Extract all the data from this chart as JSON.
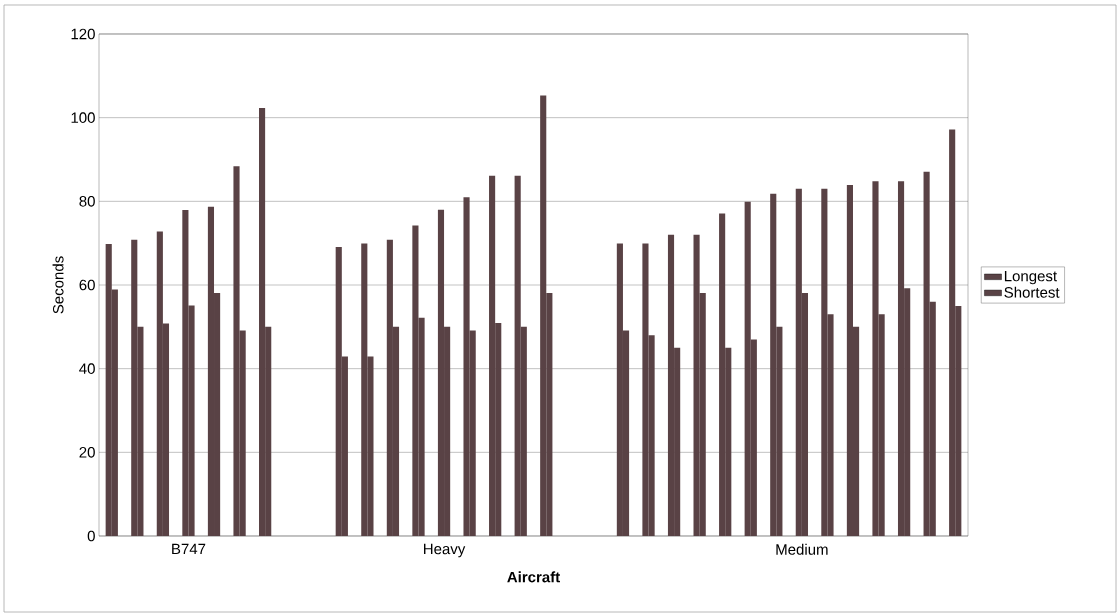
{
  "chart_data": {
    "type": "bar",
    "xlabel": "Aircraft",
    "ylabel": "Seconds",
    "categories": [
      null,
      null,
      null,
      "B747",
      null,
      null,
      null,
      null,
      null,
      null,
      null,
      null,
      null,
      "Heavy",
      null,
      null,
      null,
      null,
      null,
      null,
      null,
      null,
      null,
      null,
      null,
      null,
      null,
      "Medium",
      null,
      null,
      null,
      null,
      null,
      null
    ],
    "series": [
      {
        "name": "Longest",
        "color": "#594245",
        "values": [
          69.8,
          70.8,
          72.8,
          77.9,
          78.7,
          88.4,
          102.3,
          null,
          null,
          69.1,
          69.9,
          70.8,
          74.2,
          78.0,
          81.0,
          86.1,
          86.1,
          105.3,
          null,
          null,
          69.9,
          69.9,
          72.0,
          72.0,
          77.1,
          79.9,
          81.8,
          83.0,
          83.0,
          83.9,
          84.8,
          84.8,
          87.1,
          97.2
        ]
      },
      {
        "name": "Shortest",
        "color": "#594245",
        "values": [
          58.9,
          50.0,
          50.8,
          55.1,
          58.1,
          49.1,
          50.0,
          null,
          null,
          42.9,
          42.9,
          50.0,
          52.2,
          50.0,
          49.1,
          50.9,
          50.0,
          58.1,
          null,
          null,
          49.1,
          48.0,
          45.0,
          58.1,
          45.0,
          47.0,
          50.0,
          58.1,
          53.0,
          50.0,
          53.0,
          59.2,
          56.0,
          55.0
        ]
      }
    ],
    "ylim": [
      0,
      120
    ],
    "yticks": [
      0,
      20,
      40,
      60,
      80,
      100,
      120
    ],
    "grid": "y",
    "legend": "right"
  }
}
